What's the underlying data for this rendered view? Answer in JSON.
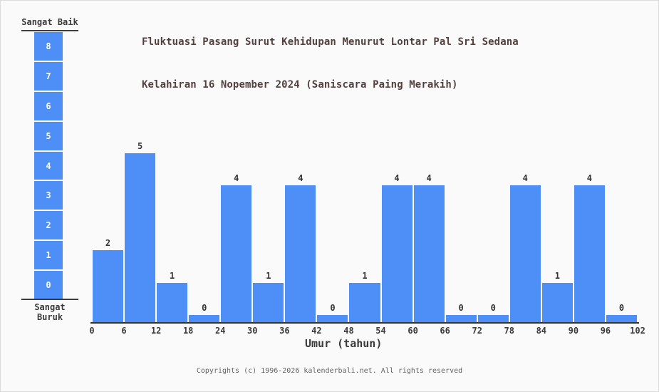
{
  "title": {
    "line1": "Fluktuasi Pasang Surut Kehidupan Menurut Lontar Pal Sri Sedana",
    "line2": "Kelahiran 16 Nopember 2024 (Saniscara Paing Merakih)",
    "color": "#544040"
  },
  "scale_legend": {
    "top_label": "Sangat Baik",
    "bottom_label": "Sangat Buruk",
    "levels": [
      "8",
      "7",
      "6",
      "5",
      "4",
      "3",
      "2",
      "1",
      "0"
    ],
    "box_color": "#4d8ef7"
  },
  "chart_data": {
    "type": "bar",
    "title": "Fluktuasi Pasang Surut Kehidupan Menurut Lontar Pal Sri Sedana Kelahiran 16 Nopember 2024 (Saniscara Paing Merakih)",
    "categories": [
      "0-6",
      "6-12",
      "12-18",
      "18-24",
      "24-30",
      "30-36",
      "36-42",
      "42-48",
      "48-54",
      "54-60",
      "60-66",
      "66-72",
      "72-78",
      "78-84",
      "84-90",
      "90-96",
      "96-102"
    ],
    "values": [
      2,
      5,
      1,
      0,
      4,
      1,
      4,
      0,
      1,
      4,
      4,
      0,
      0,
      4,
      1,
      4,
      0
    ],
    "x_ticks": [
      "0",
      "6",
      "12",
      "18",
      "24",
      "30",
      "36",
      "42",
      "48",
      "54",
      "60",
      "66",
      "72",
      "78",
      "84",
      "90",
      "96",
      "102"
    ],
    "xlabel": "Umur (tahun)",
    "ylabel": "",
    "ylim": [
      0,
      8
    ],
    "bar_color": "#4d8ef7",
    "grid": false,
    "legend_position": "left"
  },
  "footer": {
    "copyright": "Copyrights (c) 1996-2026 kalenderbali.net. All rights reserved"
  }
}
